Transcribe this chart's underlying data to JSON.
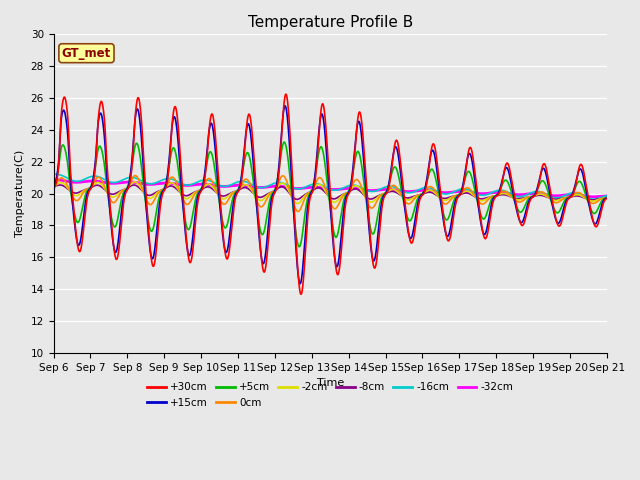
{
  "title": "Temperature Profile B",
  "xlabel": "Time",
  "ylabel": "Temperature(C)",
  "ylim": [
    10,
    30
  ],
  "xlim": [
    0,
    15
  ],
  "x_tick_labels": [
    "Sep 6",
    "Sep 7",
    "Sep 8",
    "Sep 9",
    "Sep 10",
    "Sep 11",
    "Sep 12",
    "Sep 13",
    "Sep 14",
    "Sep 15",
    "Sep 16",
    "Sep 17",
    "Sep 18",
    "Sep 19",
    "Sep 20",
    "Sep 21"
  ],
  "legend_label": "GT_met",
  "series_labels": [
    "+30cm",
    "+15cm",
    "+5cm",
    "0cm",
    "-2cm",
    "-8cm",
    "-16cm",
    "-32cm"
  ],
  "series_colors": [
    "#ff0000",
    "#0000cc",
    "#00bb00",
    "#ff8800",
    "#dddd00",
    "#880088",
    "#00cccc",
    "#ff00ff"
  ],
  "series_linewidths": [
    1.2,
    1.2,
    1.2,
    1.2,
    1.2,
    1.2,
    1.2,
    2.0
  ],
  "bg_color": "#e8e8e8",
  "fig_color": "#e8e8e8",
  "title_fontsize": 11,
  "axis_fontsize": 8,
  "tick_fontsize": 7.5
}
